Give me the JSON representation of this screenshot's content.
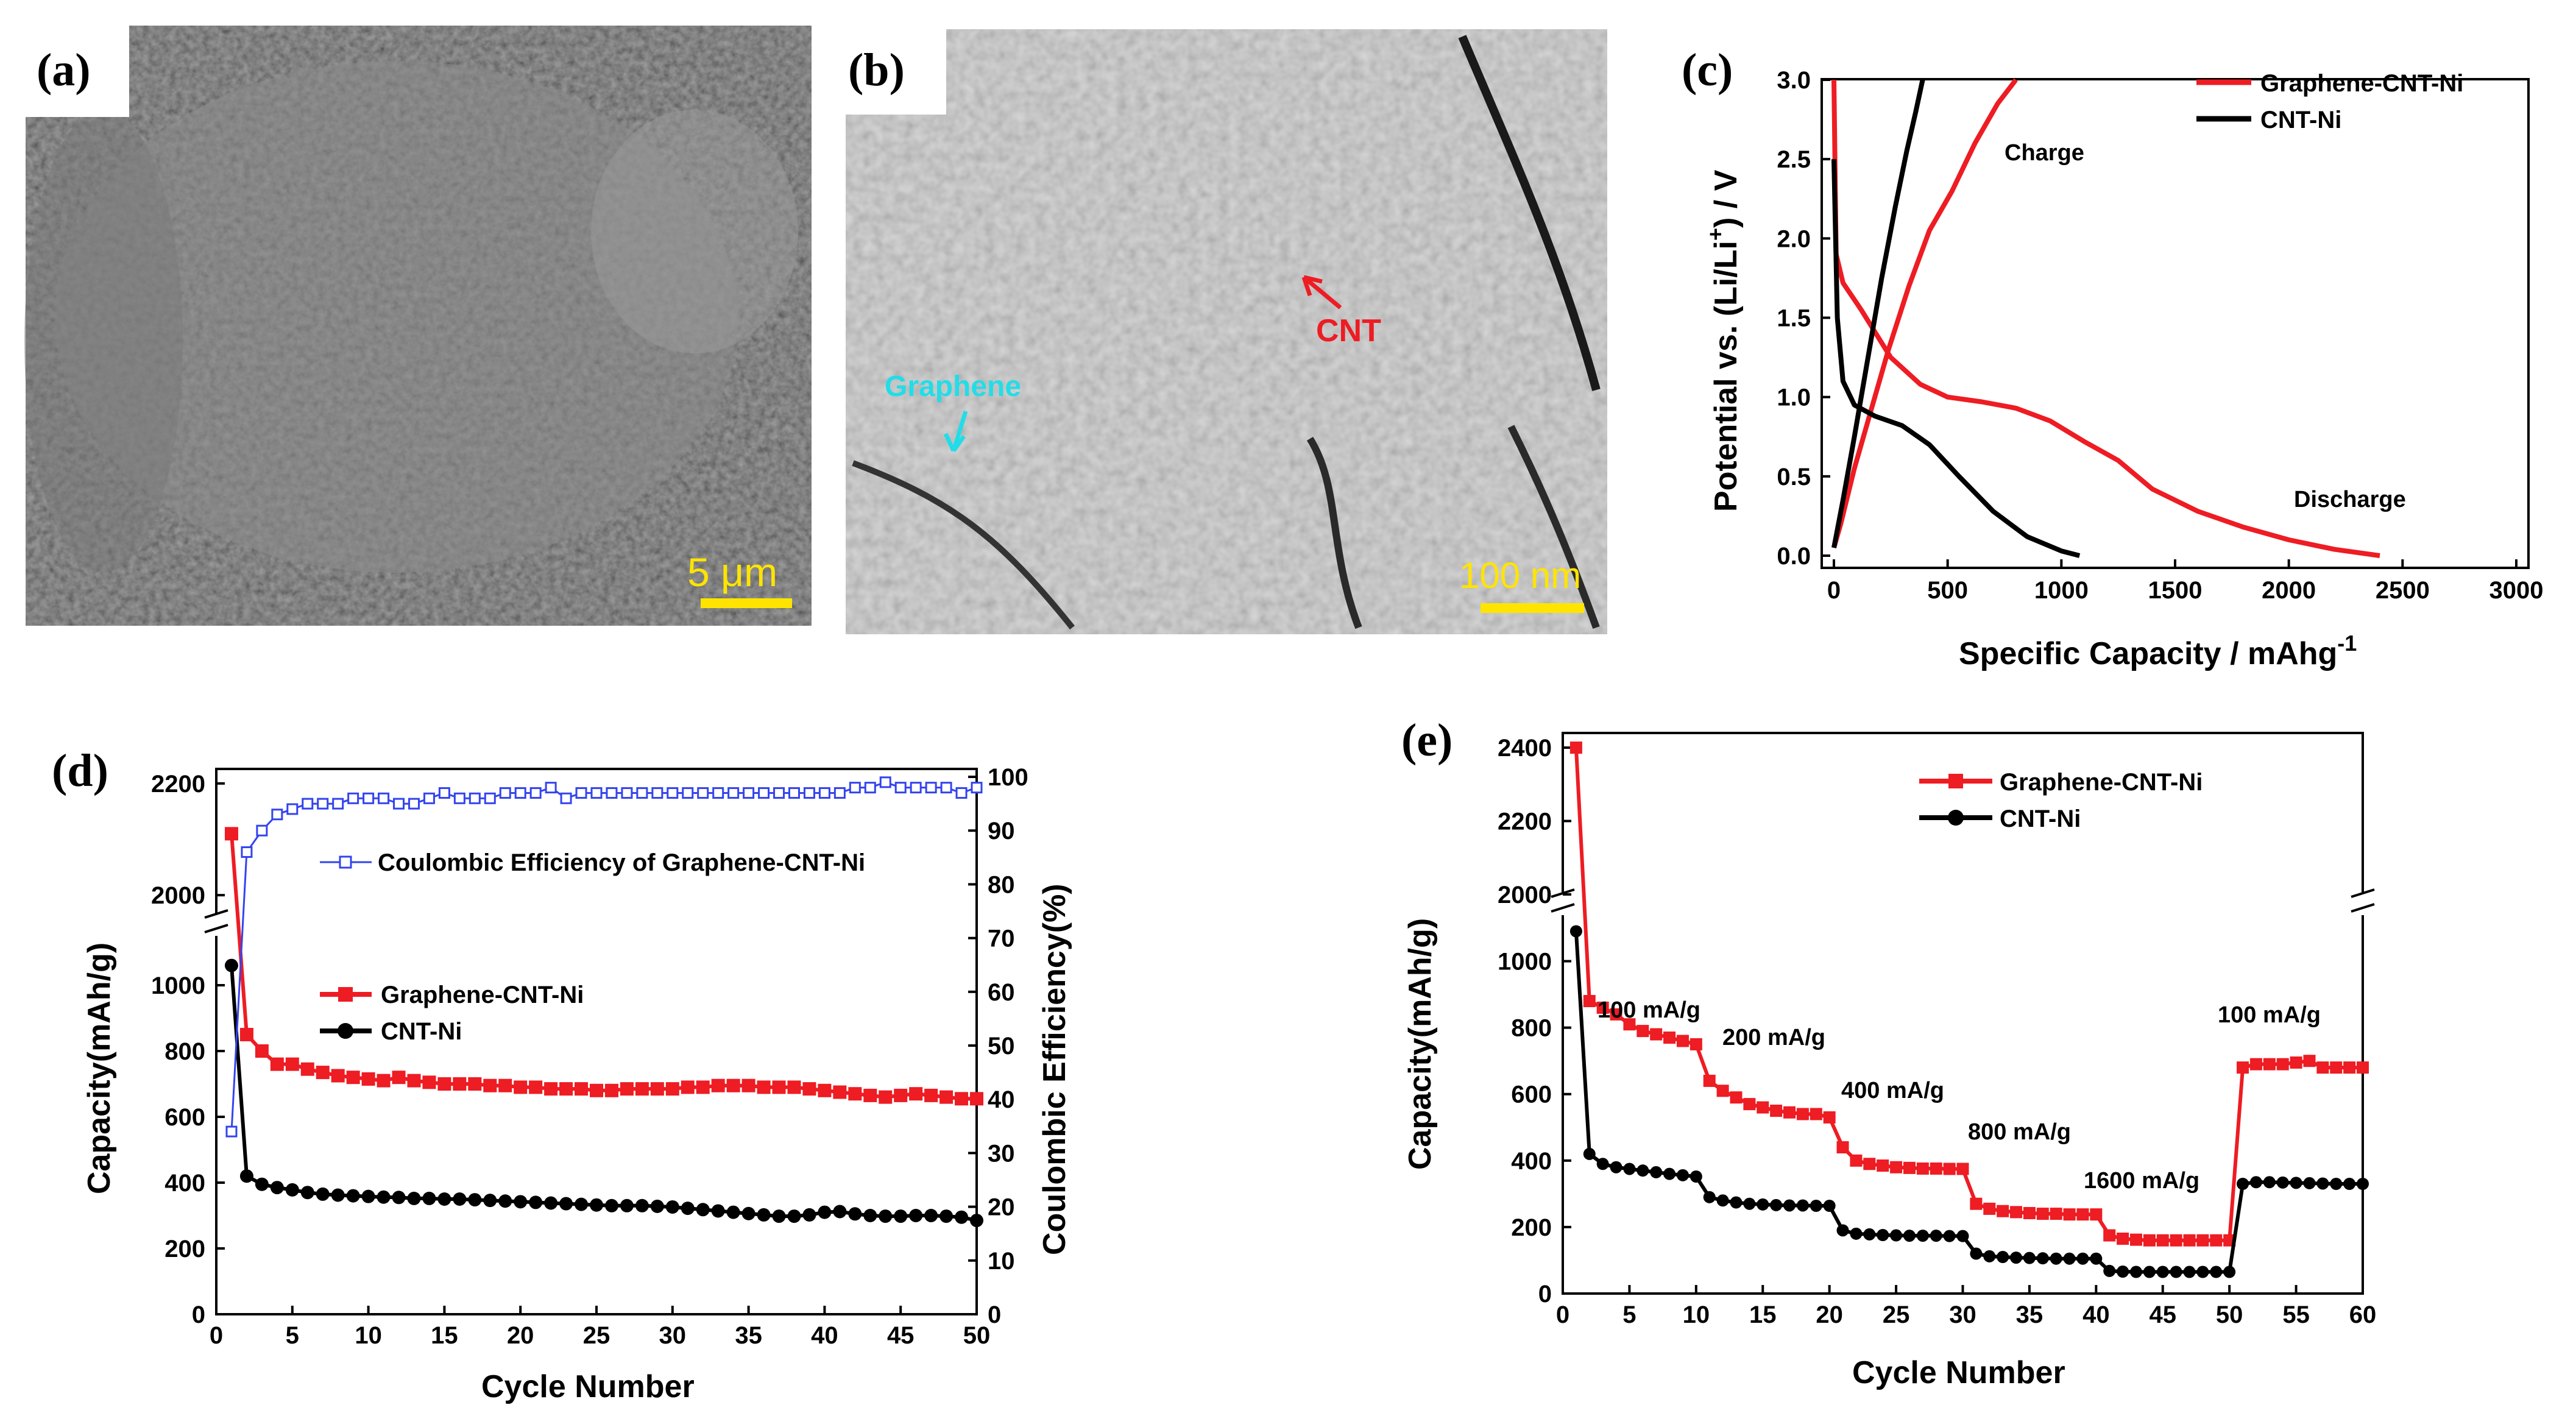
{
  "colors": {
    "graphene": "#ee1c23",
    "cnt": "#000000",
    "ce": "#3344ee",
    "scale": "#ffe400"
  },
  "panels": {
    "a": {
      "label": "(a)",
      "scale_text": "5 μm"
    },
    "b": {
      "label": "(b)",
      "scale_text": "100 nm",
      "annotation_cnt": "CNT",
      "annotation_graphene": "Graphene"
    }
  },
  "chart_data": [
    {
      "id": "c",
      "panel_label": "(c)",
      "type": "line",
      "xlabel": "Specific Capacity / mAhg",
      "xlabel_sup": "-1",
      "ylabel_pre": "Potential vs. (Li/Li",
      "ylabel_sup": "+",
      "ylabel_post": ") / V",
      "xlim": [
        0,
        3000
      ],
      "ylim": [
        0,
        3.0
      ],
      "xticks": [
        0,
        500,
        1000,
        1500,
        2000,
        2500,
        3000
      ],
      "yticks": [
        "0.0",
        "0.5",
        "1.0",
        "1.5",
        "2.0",
        "2.5",
        "3.0"
      ],
      "legend": [
        "Graphene-CNT-Ni",
        "CNT-Ni"
      ],
      "annotations": [
        "Charge",
        "Discharge"
      ],
      "series": [
        {
          "name": "Graphene-CNT-Ni discharge",
          "color_key": "graphene",
          "x": [
            0,
            10,
            40,
            120,
            250,
            380,
            500,
            650,
            800,
            950,
            1100,
            1250,
            1400,
            1600,
            1800,
            2000,
            2200,
            2400
          ],
          "y": [
            3.0,
            1.9,
            1.72,
            1.55,
            1.25,
            1.08,
            1.0,
            0.97,
            0.93,
            0.85,
            0.72,
            0.6,
            0.42,
            0.28,
            0.18,
            0.1,
            0.04,
            0.0
          ]
        },
        {
          "name": "Graphene-CNT-Ni charge",
          "color_key": "graphene",
          "x": [
            0,
            30,
            90,
            160,
            240,
            330,
            420,
            520,
            620,
            720,
            800
          ],
          "y": [
            0.05,
            0.2,
            0.55,
            0.9,
            1.3,
            1.7,
            2.05,
            2.3,
            2.6,
            2.85,
            3.0
          ]
        },
        {
          "name": "CNT-Ni discharge",
          "color_key": "cnt",
          "x": [
            0,
            15,
            40,
            90,
            180,
            300,
            420,
            550,
            700,
            850,
            1000,
            1080
          ],
          "y": [
            2.5,
            1.5,
            1.1,
            0.95,
            0.88,
            0.82,
            0.7,
            0.5,
            0.28,
            0.12,
            0.03,
            0.0
          ]
        },
        {
          "name": "CNT-Ni charge",
          "color_key": "cnt",
          "x": [
            0,
            40,
            90,
            150,
            210,
            270,
            320,
            360,
            390
          ],
          "y": [
            0.05,
            0.35,
            0.75,
            1.25,
            1.75,
            2.2,
            2.55,
            2.8,
            3.0
          ]
        }
      ]
    },
    {
      "id": "d",
      "panel_label": "(d)",
      "type": "line",
      "xlabel": "Cycle Number",
      "ylabel": "Capacity(mAh/g)",
      "ylabel_right": "Coulombic Efficiency(%)",
      "xlim": [
        0,
        50
      ],
      "xticks": [
        0,
        5,
        10,
        15,
        20,
        25,
        30,
        35,
        40,
        45,
        50
      ],
      "yticks_left": [
        0,
        200,
        400,
        600,
        800,
        1000,
        2000,
        2200
      ],
      "ylim_lower": [
        0,
        1100
      ],
      "ylim_upper": [
        1950,
        2250
      ],
      "yticks_right": [
        0,
        10,
        20,
        30,
        40,
        50,
        60,
        70,
        80,
        90,
        100
      ],
      "ylim_right": [
        0,
        100
      ],
      "legend": [
        "Coulombic Efficiency of Graphene-CNT-Ni",
        "Graphene-CNT-Ni",
        "CNT-Ni"
      ],
      "series": [
        {
          "name": "Graphene-CNT-Ni",
          "color_key": "graphene",
          "values": [
            2110,
            850,
            800,
            760,
            760,
            745,
            735,
            725,
            720,
            715,
            710,
            720,
            710,
            705,
            700,
            700,
            700,
            695,
            695,
            690,
            690,
            685,
            685,
            685,
            680,
            680,
            685,
            685,
            685,
            685,
            690,
            690,
            695,
            695,
            695,
            690,
            690,
            690,
            685,
            680,
            675,
            670,
            665,
            660,
            665,
            670,
            665,
            660,
            655,
            655
          ]
        },
        {
          "name": "CNT-Ni",
          "color_key": "cnt",
          "values": [
            1060,
            420,
            395,
            385,
            378,
            370,
            365,
            362,
            360,
            358,
            356,
            355,
            352,
            352,
            350,
            350,
            348,
            346,
            344,
            342,
            340,
            338,
            336,
            334,
            332,
            330,
            330,
            330,
            328,
            326,
            322,
            318,
            314,
            310,
            306,
            302,
            298,
            298,
            302,
            310,
            312,
            305,
            300,
            298,
            298,
            300,
            300,
            298,
            295,
            285
          ]
        },
        {
          "name": "Coulombic Efficiency of Graphene-CNT-Ni",
          "color_key": "ce",
          "axis": "right",
          "values": [
            34,
            86,
            90,
            93,
            94,
            95,
            95,
            95,
            96,
            96,
            96,
            95,
            95,
            96,
            97,
            96,
            96,
            96,
            97,
            97,
            97,
            98,
            96,
            97,
            97,
            97,
            97,
            97,
            97,
            97,
            97,
            97,
            97,
            97,
            97,
            97,
            97,
            97,
            97,
            97,
            97,
            98,
            98,
            99,
            98,
            98,
            98,
            98,
            97,
            98
          ]
        }
      ]
    },
    {
      "id": "e",
      "panel_label": "(e)",
      "type": "line",
      "xlabel": "Cycle Number",
      "ylabel": "Capacity(mAh/g)",
      "xlim": [
        0,
        60
      ],
      "xticks": [
        0,
        5,
        10,
        15,
        20,
        25,
        30,
        35,
        40,
        45,
        50,
        55,
        60
      ],
      "yticks_left": [
        0,
        200,
        400,
        600,
        800,
        1000,
        2000,
        2200,
        2400
      ],
      "ylim_lower": [
        0,
        1100
      ],
      "ylim_upper": [
        1980,
        2420
      ],
      "legend": [
        "Graphene-CNT-Ni",
        "CNT-Ni"
      ],
      "annotations": [
        "100 mA/g",
        "200 mA/g",
        "400 mA/g",
        "800 mA/g",
        "1600 mA/g",
        "100 mA/g"
      ],
      "series": [
        {
          "name": "Graphene-CNT-Ni",
          "color_key": "graphene",
          "values": [
            2400,
            880,
            860,
            840,
            810,
            790,
            780,
            770,
            760,
            750,
            640,
            610,
            590,
            570,
            560,
            550,
            545,
            540,
            540,
            530,
            440,
            400,
            390,
            385,
            380,
            378,
            376,
            376,
            375,
            375,
            270,
            255,
            248,
            245,
            242,
            240,
            240,
            238,
            238,
            238,
            175,
            165,
            162,
            160,
            160,
            160,
            160,
            160,
            160,
            160,
            680,
            690,
            690,
            690,
            695,
            700,
            680,
            680,
            680,
            680
          ]
        },
        {
          "name": "CNT-Ni",
          "color_key": "cnt",
          "values": [
            1090,
            420,
            390,
            380,
            375,
            370,
            365,
            360,
            356,
            352,
            290,
            280,
            274,
            270,
            268,
            266,
            265,
            265,
            264,
            264,
            190,
            180,
            178,
            176,
            175,
            174,
            174,
            174,
            173,
            173,
            120,
            112,
            110,
            108,
            107,
            106,
            105,
            105,
            105,
            105,
            68,
            66,
            65,
            65,
            65,
            65,
            65,
            65,
            65,
            65,
            330,
            335,
            335,
            334,
            333,
            332,
            331,
            330,
            330,
            330
          ]
        }
      ]
    }
  ]
}
